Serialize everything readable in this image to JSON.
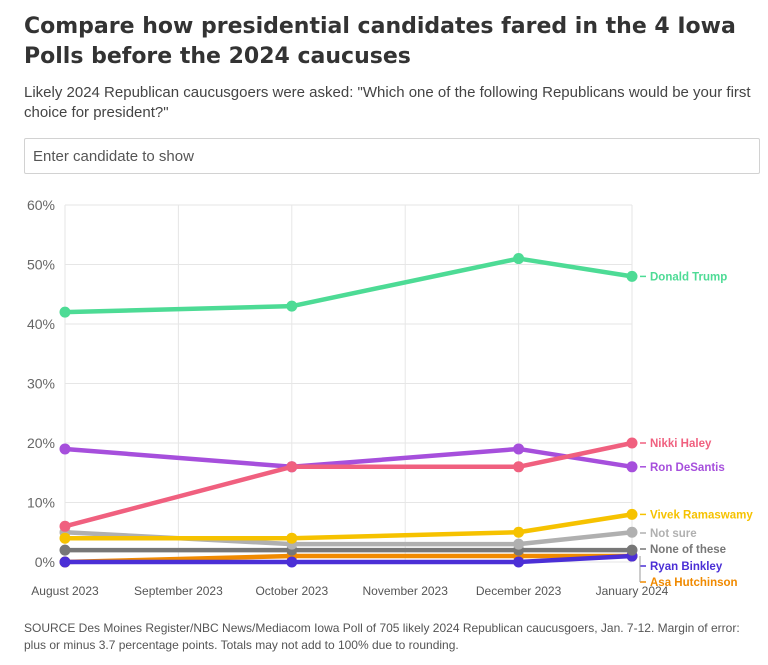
{
  "title": "Compare how presidential candidates fared in the 4 Iowa Polls before the 2024 caucuses",
  "subtitle": "Likely 2024 Republican caucusgoers were asked: \"Which one of the following Republicans would be your first choice for president?\"",
  "search": {
    "placeholder": "Enter candidate to show"
  },
  "source": "SOURCE Des Moines Register/NBC News/Mediacom Iowa Poll of 705 likely 2024 Republican caucusgoers, Jan. 7-12. Margin of error: plus or minus 3.7 percentage points. Totals may not add to 100% due to rounding.",
  "chart_data": {
    "type": "line",
    "x_ticks": [
      "August 2023",
      "September 2023",
      "October 2023",
      "November 2023",
      "December 2023",
      "January 2024"
    ],
    "x": [
      "August 2023",
      "October 2023",
      "December 2023",
      "January 2024"
    ],
    "ylim": [
      0,
      60
    ],
    "y_ticks": [
      "0%",
      "10%",
      "20%",
      "30%",
      "40%",
      "50%",
      "60%"
    ],
    "grid": true,
    "legend": "direct labels at line ends",
    "series": [
      {
        "name": "Donald Trump",
        "values": [
          42,
          43,
          51,
          48
        ],
        "color": "#4ddb95"
      },
      {
        "name": "Nikki Haley",
        "values": [
          6,
          16,
          16,
          20
        ],
        "color": "#f0607f"
      },
      {
        "name": "Ron DeSantis",
        "values": [
          19,
          16,
          19,
          16
        ],
        "color": "#a64fdc"
      },
      {
        "name": "Vivek Ramaswamy",
        "values": [
          4,
          4,
          5,
          8
        ],
        "color": "#f6c200"
      },
      {
        "name": "Not sure",
        "values": [
          5,
          3,
          3,
          5
        ],
        "color": "#b0b0b0"
      },
      {
        "name": "None of these",
        "values": [
          2,
          2,
          2,
          2
        ],
        "color": "#777777"
      },
      {
        "name": "Ryan Binkley",
        "values": [
          0,
          0,
          0,
          1
        ],
        "color": "#4b2fd6"
      },
      {
        "name": "Asa Hutchinson",
        "values": [
          0,
          1,
          1,
          1
        ],
        "color": "#f08a00"
      }
    ]
  }
}
